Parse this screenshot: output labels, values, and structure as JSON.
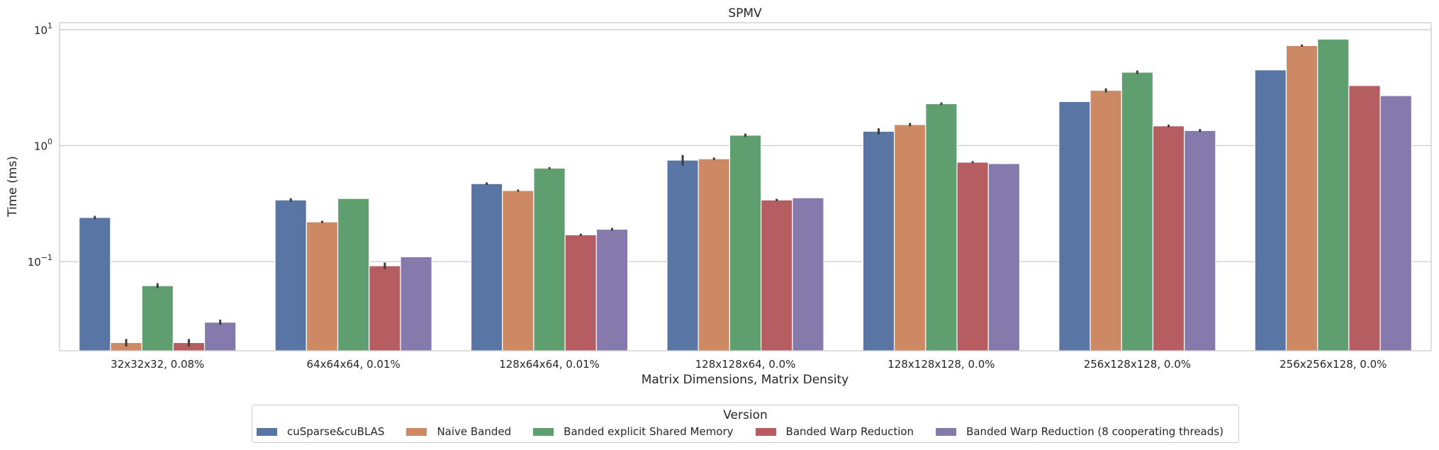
{
  "chart_data": {
    "type": "bar",
    "title": "SPMV",
    "xlabel": "Matrix Dimensions, Matrix Density",
    "ylabel": "Time (ms)",
    "yscale": "log",
    "ylim": [
      0.017,
      11.5
    ],
    "yticks": [
      {
        "value": 0.1,
        "base": "10",
        "exp": "−1"
      },
      {
        "value": 1,
        "base": "10",
        "exp": "0"
      },
      {
        "value": 10,
        "base": "10",
        "exp": "1"
      }
    ],
    "grid": "horizontal",
    "legend_title": "Version",
    "legend_position": "bottom-center",
    "categories": [
      "32x32x32, 0.08%",
      "64x64x64, 0.01%",
      "128x64x64, 0.01%",
      "128x128x64, 0.0%",
      "128x128x128, 0.0%",
      "256x128x128, 0.0%",
      "256x256x128, 0.0%"
    ],
    "series": [
      {
        "name": "cuSparse&cuBLAS",
        "color": "#5875a4",
        "values": [
          0.24,
          0.34,
          0.47,
          0.75,
          1.33,
          2.4,
          4.5
        ],
        "error": [
          0.008,
          0.012,
          0.012,
          0.08,
          0.08,
          0,
          0
        ]
      },
      {
        "name": "Naive Banded",
        "color": "#cc8963",
        "values": [
          0.02,
          0.22,
          0.41,
          0.77,
          1.52,
          3.0,
          7.3
        ],
        "error": [
          0.0015,
          0.005,
          0.008,
          0.02,
          0.05,
          0.12,
          0.15
        ]
      },
      {
        "name": "Banded explicit Shared Memory",
        "color": "#5f9e6e",
        "values": [
          0.062,
          0.35,
          0.64,
          1.23,
          2.3,
          4.3,
          8.3
        ],
        "error": [
          0.003,
          0,
          0.012,
          0.04,
          0.06,
          0.15,
          0
        ]
      },
      {
        "name": "Banded Warp Reduction",
        "color": "#b55d60",
        "values": [
          0.02,
          0.092,
          0.17,
          0.34,
          0.72,
          1.48,
          3.3
        ],
        "error": [
          0.0015,
          0.006,
          0.004,
          0.008,
          0.015,
          0.04,
          0
        ]
      },
      {
        "name": "Banded Warp Reduction (8 cooperating threads)",
        "color": "#857aab",
        "values": [
          0.03,
          0.11,
          0.19,
          0.355,
          0.7,
          1.35,
          2.7
        ],
        "error": [
          0.0015,
          0,
          0.005,
          0,
          0,
          0.04,
          0
        ]
      }
    ]
  }
}
